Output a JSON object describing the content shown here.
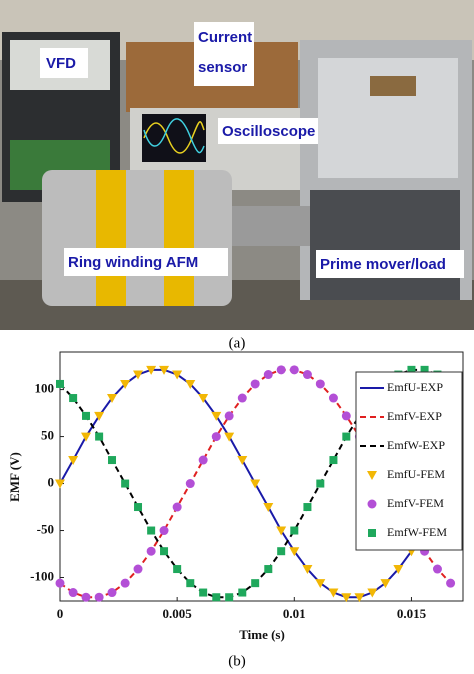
{
  "figure": {
    "photo_labels": [
      "VFD",
      "Current",
      "sensor",
      "Oscilloscope",
      "Ring winding AFM",
      "Prime mover/load"
    ],
    "caption_a": "(a)",
    "caption_b": "(b)"
  },
  "chart_data": {
    "type": "line",
    "x_label": "Time (s)",
    "y_label": "EMF (V)",
    "x": [
      0,
      0.00056,
      0.00111,
      0.00167,
      0.00222,
      0.00278,
      0.00333,
      0.00389,
      0.00444,
      0.005,
      0.00556,
      0.00611,
      0.00667,
      0.00722,
      0.00778,
      0.00833,
      0.00889,
      0.00944,
      0.01,
      0.01056,
      0.01111,
      0.01167,
      0.01222,
      0.01278,
      0.01333,
      0.01389,
      0.01444,
      0.015,
      0.01556,
      0.01611,
      0.01667
    ],
    "xlim": [
      0,
      0.0172
    ],
    "xticks": [
      0,
      0.005,
      0.01,
      0.015
    ],
    "ylim": [
      -125,
      140
    ],
    "yticks": [
      -100,
      -50,
      0,
      50,
      100
    ],
    "grid": false,
    "legend": "upper right",
    "series": [
      {
        "name": "EmfU-EXP",
        "color": "#1a1aa8",
        "line_style": "solid",
        "marker": "none",
        "values": [
          0,
          25,
          50,
          72,
          91,
          106,
          116,
          121,
          121,
          116,
          106,
          91,
          72,
          50,
          25,
          0,
          -25,
          -50,
          -72,
          -91,
          -106,
          -116,
          -121,
          -121,
          -116,
          -106,
          -91,
          -72,
          -50,
          -25,
          0
        ]
      },
      {
        "name": "EmfV-EXP",
        "color": "#e02020",
        "line_style": "dashed",
        "marker": "none",
        "values": [
          -106,
          -116,
          -121,
          -121,
          -116,
          -106,
          -91,
          -72,
          -50,
          -25,
          0,
          25,
          50,
          72,
          91,
          106,
          116,
          121,
          121,
          116,
          106,
          91,
          72,
          50,
          25,
          0,
          -25,
          -50,
          -72,
          -91,
          -106
        ]
      },
      {
        "name": "EmfW-EXP",
        "color": "#000000",
        "line_style": "dashed",
        "marker": "none",
        "values": [
          106,
          91,
          72,
          50,
          25,
          0,
          -25,
          -50,
          -72,
          -91,
          -106,
          -116,
          -121,
          -121,
          -116,
          -106,
          -91,
          -72,
          -50,
          -25,
          0,
          25,
          50,
          72,
          91,
          106,
          116,
          121,
          121,
          116,
          106
        ]
      },
      {
        "name": "EmfU-FEM",
        "color": "#f2b705",
        "line_style": "none",
        "marker": "triangle-down",
        "values": [
          0,
          25,
          50,
          72,
          91,
          106,
          116,
          121,
          121,
          116,
          106,
          91,
          72,
          50,
          25,
          0,
          -25,
          -50,
          -72,
          -91,
          -106,
          -116,
          -121,
          -121,
          -116,
          -106,
          -91,
          -72,
          -50,
          -25,
          0
        ]
      },
      {
        "name": "EmfV-FEM",
        "color": "#b34fd6",
        "line_style": "none",
        "marker": "circle",
        "values": [
          -106,
          -116,
          -121,
          -121,
          -116,
          -106,
          -91,
          -72,
          -50,
          -25,
          0,
          25,
          50,
          72,
          91,
          106,
          116,
          121,
          121,
          116,
          106,
          91,
          72,
          50,
          25,
          0,
          -25,
          -50,
          -72,
          -91,
          -106
        ]
      },
      {
        "name": "EmfW-FEM",
        "color": "#1fa85c",
        "line_style": "none",
        "marker": "square",
        "values": [
          106,
          91,
          72,
          50,
          25,
          0,
          -25,
          -50,
          -72,
          -91,
          -106,
          -116,
          -121,
          -121,
          -116,
          -106,
          -91,
          -72,
          -50,
          -25,
          0,
          25,
          50,
          72,
          91,
          106,
          116,
          121,
          121,
          116,
          106
        ]
      }
    ]
  }
}
